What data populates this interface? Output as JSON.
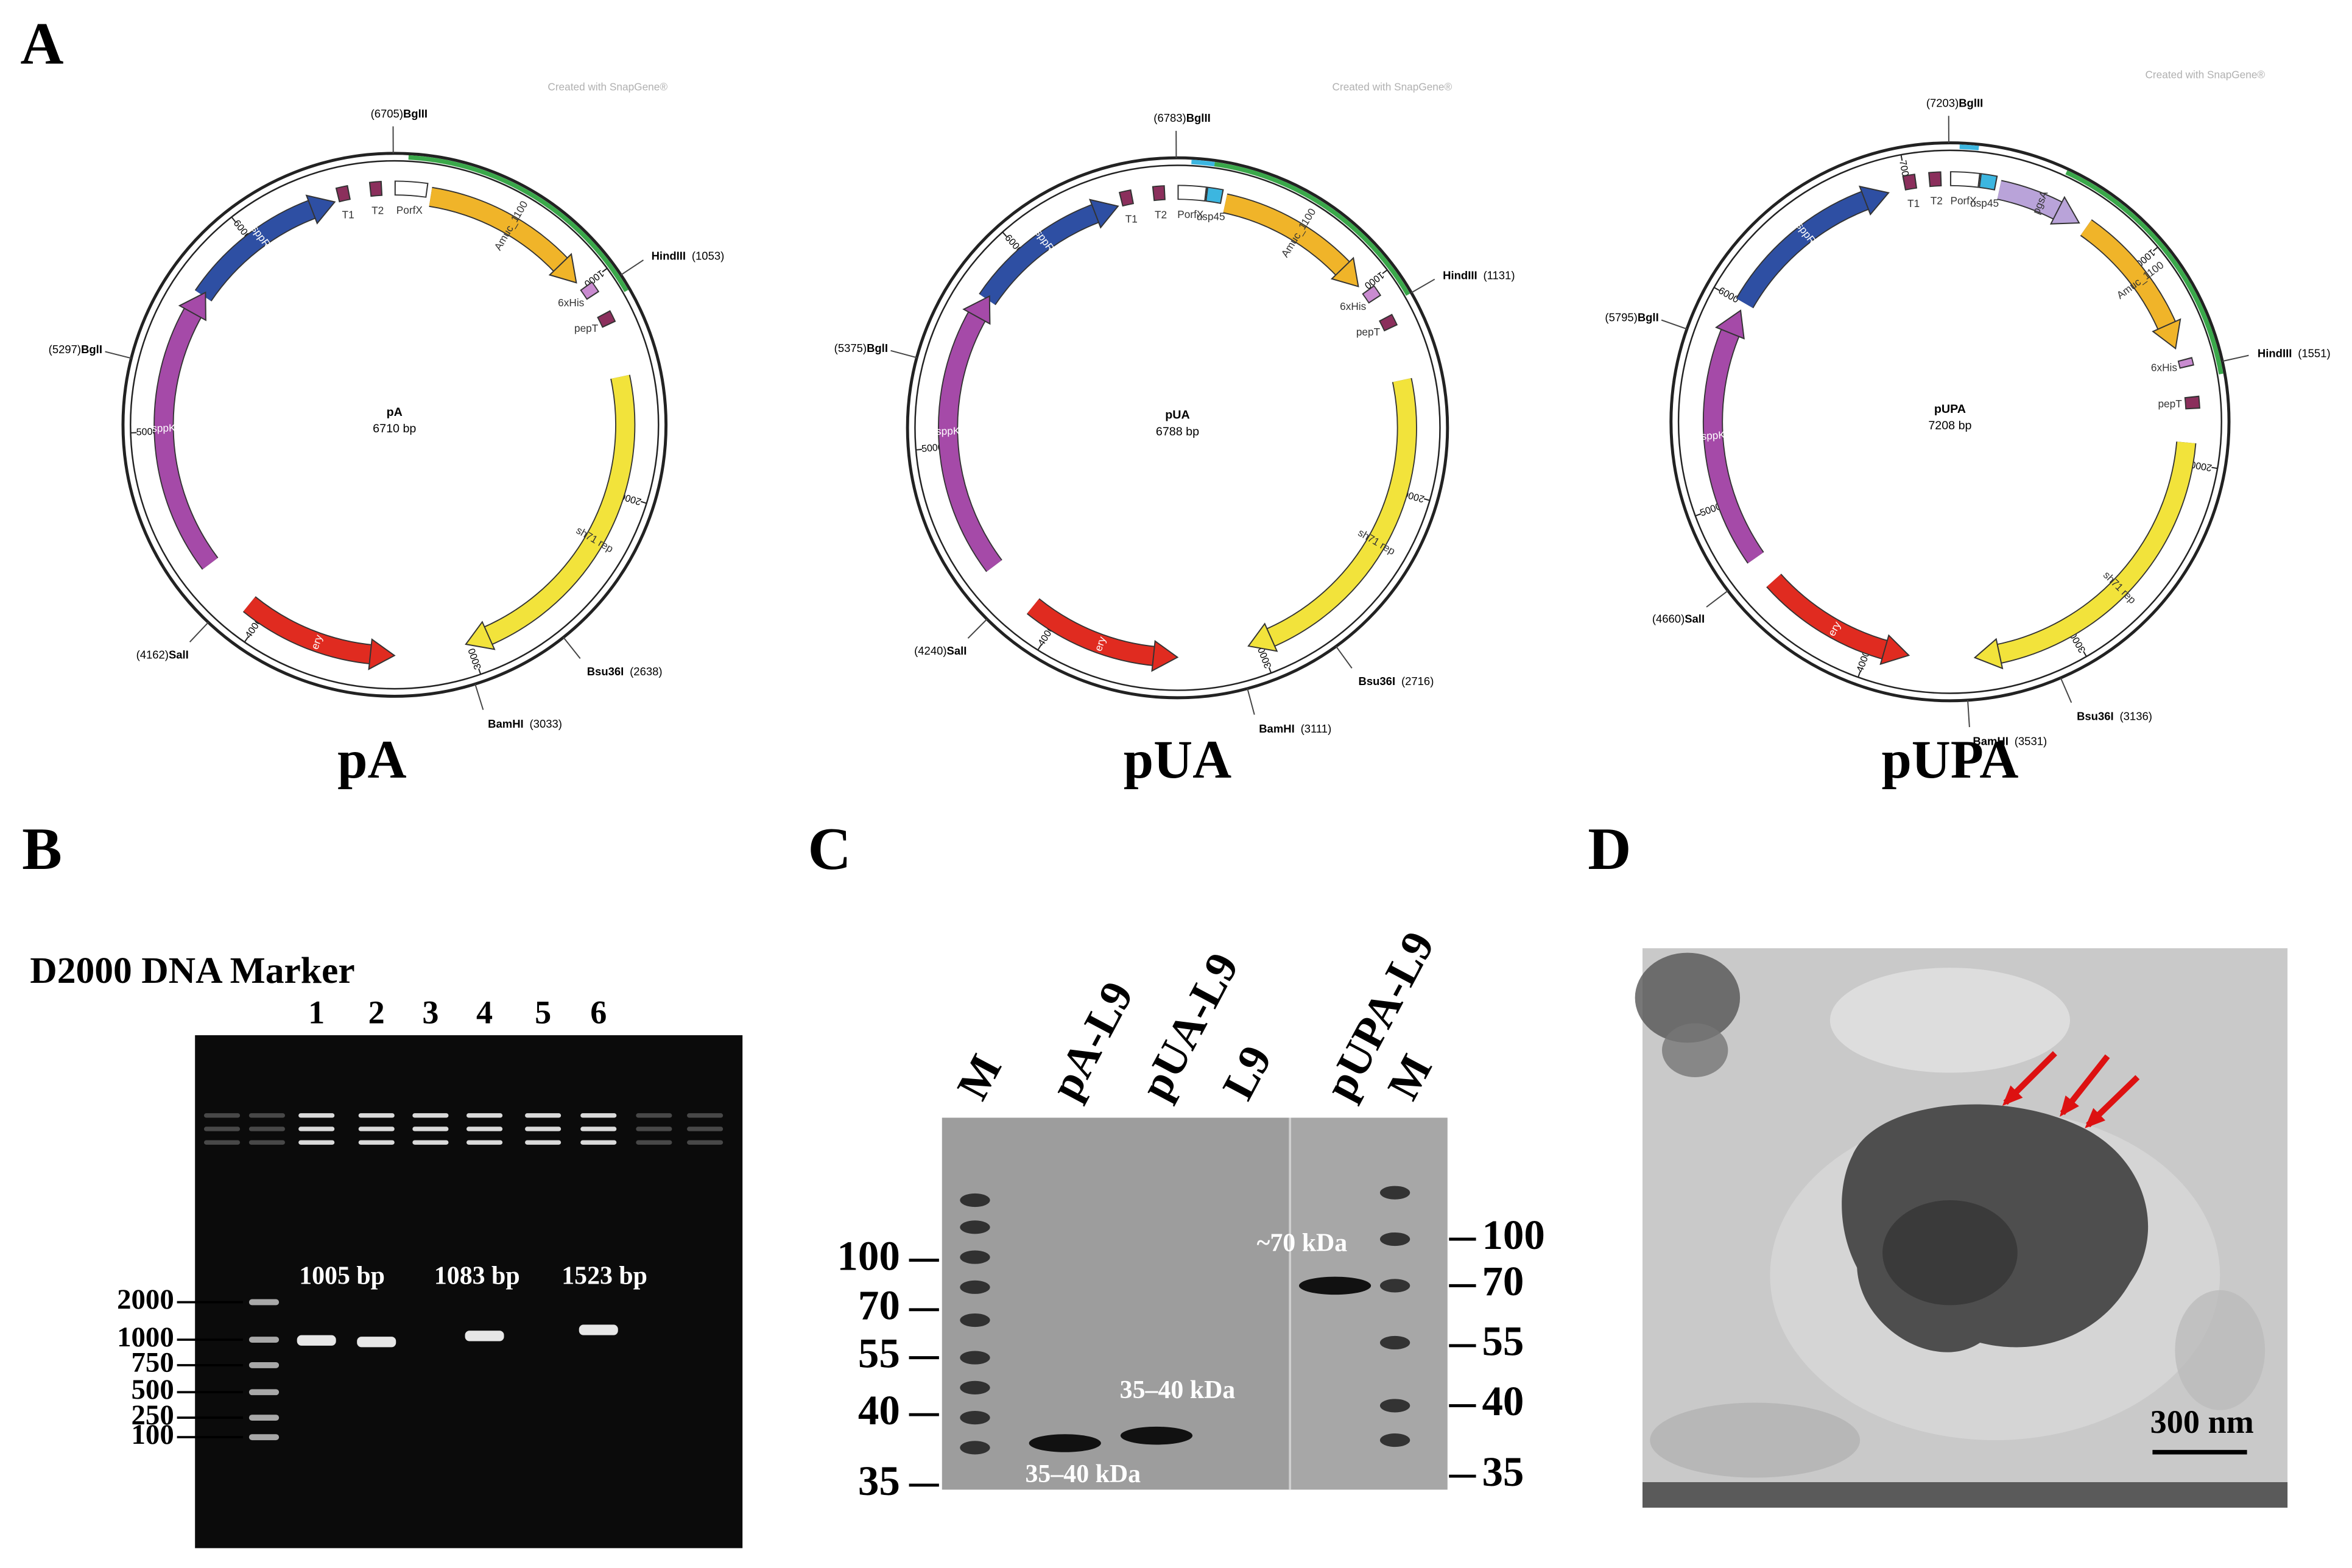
{
  "panels": {
    "A": {
      "label": "A",
      "plasmids": [
        {
          "name": "pA",
          "size": "6710 bp",
          "watermark": "Created with SnapGene®",
          "sites": [
            {
              "label": "BglII",
              "position": "(6705)"
            },
            {
              "label": "HindIII",
              "position": "(1053)"
            },
            {
              "label": "Bsu36I",
              "position": "(2638)"
            },
            {
              "label": "BamHI",
              "position": "(3033)"
            },
            {
              "label": "SalI",
              "position": "(4162)"
            },
            {
              "label": "BglI",
              "position": "(5297)"
            }
          ],
          "ticks": [
            1000,
            2000,
            3000,
            4000,
            5000,
            6000
          ],
          "features": [
            "sppR",
            "T1",
            "T2",
            "PorfX",
            "Amuc_1100",
            "6xHis",
            "pepT",
            "sh71 rep",
            "ery",
            "sppK"
          ]
        },
        {
          "name": "pUA",
          "size": "6788 bp",
          "watermark": "Created with SnapGene®",
          "sites": [
            {
              "label": "BglII",
              "position": "(6783)"
            },
            {
              "label": "HindIII",
              "position": "(1131)"
            },
            {
              "label": "Bsu36I",
              "position": "(2716)"
            },
            {
              "label": "BamHI",
              "position": "(3111)"
            },
            {
              "label": "SalI",
              "position": "(4240)"
            },
            {
              "label": "BglI",
              "position": "(5375)"
            }
          ],
          "ticks": [
            1000,
            2000,
            3000,
            4000,
            5000,
            6000
          ],
          "features": [
            "sppR",
            "T1",
            "T2",
            "PorfX",
            "usp45",
            "Amuc_1100",
            "6xHis",
            "pepT",
            "sh71 rep",
            "ery",
            "sppK"
          ]
        },
        {
          "name": "pUPA",
          "size": "7208 bp",
          "watermark": "Created with SnapGene®",
          "sites": [
            {
              "label": "BglII",
              "position": "(7203)"
            },
            {
              "label": "HindIII",
              "position": "(1551)"
            },
            {
              "label": "Bsu36I",
              "position": "(3136)"
            },
            {
              "label": "BamHI",
              "position": "(3531)"
            },
            {
              "label": "SalI",
              "position": "(4660)"
            },
            {
              "label": "BglI",
              "position": "(5795)"
            }
          ],
          "ticks": [
            1000,
            2000,
            3000,
            4000,
            5000,
            6000,
            7000
          ],
          "features": [
            "sppR",
            "T1",
            "T2",
            "PorfX",
            "usp45",
            "pgsA",
            "Amuc_1100",
            "6xHis",
            "pepT",
            "sh71 rep",
            "ery",
            "sppK"
          ]
        }
      ]
    },
    "B": {
      "label": "B",
      "title": "D2000 DNA Marker",
      "lanes": [
        "1",
        "2",
        "3",
        "4",
        "5",
        "6"
      ],
      "ladder": [
        2000,
        1000,
        750,
        500,
        250,
        100
      ],
      "band_labels": [
        "1005 bp",
        "1083 bp",
        "1523 bp"
      ]
    },
    "C": {
      "label": "C",
      "lanes": [
        "M",
        "pA-L9",
        "pUA-L9",
        "L9",
        "pUPA-L9",
        "M"
      ],
      "left_markers": [
        100,
        70,
        55,
        40,
        35
      ],
      "right_markers": [
        100,
        70,
        55,
        40,
        35
      ],
      "annotations": [
        "~70 kDa",
        "35–40 kDa",
        "35–40 kDa"
      ]
    },
    "D": {
      "label": "D",
      "scale_bar": "300 nm"
    }
  }
}
